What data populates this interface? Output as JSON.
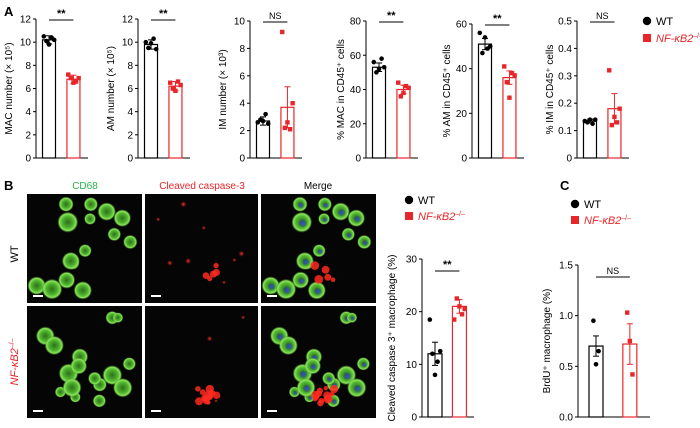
{
  "panel_labels": {
    "a": "A",
    "b": "B",
    "c": "C"
  },
  "colors": {
    "wt": "#000000",
    "ko": "#e8262a",
    "green_label": "#27b34a",
    "red_label": "#e8262a"
  },
  "legend_a": {
    "wt": "WT",
    "ko": "NF-κB2",
    "ko_sup": "–/–"
  },
  "legend_b": {
    "wt": "WT",
    "ko": "NF-κB2",
    "ko_sup": "–/–"
  },
  "legend_c": {
    "wt": "WT",
    "ko": "NF-κB2",
    "ko_sup": "–/–"
  },
  "micro": {
    "col_headers": [
      "CD68",
      "Cleaved caspase-3",
      "Merge"
    ],
    "row_labels": {
      "wt": "WT",
      "ko": "NF-κB2",
      "ko_sup": "–/–"
    }
  },
  "chart_data": [
    {
      "id": "a1",
      "type": "bar",
      "categories": [
        "WT",
        "NF-κB2-/-"
      ],
      "values": [
        10.2,
        6.8
      ],
      "errors": [
        0.35,
        0.35
      ],
      "points": [
        [
          10.5,
          10.1,
          9.8,
          10.4,
          10.2
        ],
        [
          7.2,
          6.9,
          6.5,
          6.6,
          6.9
        ]
      ],
      "ylabel": "MAC number (× 10⁵)",
      "ylim": [
        0,
        12
      ],
      "yticks": [
        0,
        2,
        4,
        6,
        8,
        10,
        12
      ],
      "significance": "**"
    },
    {
      "id": "a2",
      "type": "bar",
      "categories": [
        "WT",
        "NF-κB2-/-"
      ],
      "values": [
        9.8,
        6.2
      ],
      "errors": [
        0.4,
        0.4
      ],
      "points": [
        [
          10.0,
          9.5,
          9.9,
          10.3,
          9.4
        ],
        [
          6.5,
          6.0,
          5.8,
          6.6,
          6.3
        ]
      ],
      "ylabel": "AM number (× 10⁵)",
      "ylim": [
        0,
        12
      ],
      "yticks": [
        0,
        2,
        4,
        6,
        8,
        10,
        12
      ],
      "significance": "**"
    },
    {
      "id": "a3",
      "type": "bar",
      "categories": [
        "WT",
        "NF-κB2-/-"
      ],
      "values": [
        2.7,
        3.7
      ],
      "errors": [
        0.3,
        1.5
      ],
      "points": [
        [
          2.6,
          2.8,
          2.7,
          3.2,
          2.5
        ],
        [
          9.2,
          2.2,
          2.6,
          2.1,
          4.0
        ]
      ],
      "ylabel": "IM number (× 10³)",
      "ylim": [
        0,
        10
      ],
      "yticks": [
        0,
        2,
        4,
        6,
        8,
        10
      ],
      "significance": "NS"
    },
    {
      "id": "a4",
      "type": "bar",
      "categories": [
        "WT",
        "NF-κB2-/-"
      ],
      "values": [
        53,
        40
      ],
      "errors": [
        2.5,
        2.5
      ],
      "points": [
        [
          56,
          50,
          52,
          58,
          53
        ],
        [
          44,
          36,
          38,
          42,
          41
        ]
      ],
      "ylabel": "% MAC in CD45⁺ cells",
      "ylim": [
        0,
        80
      ],
      "yticks": [
        0,
        20,
        40,
        60,
        80
      ],
      "significance": "**"
    },
    {
      "id": "a5",
      "type": "bar",
      "categories": [
        "WT",
        "NF-κB2-/-"
      ],
      "values": [
        51,
        36
      ],
      "errors": [
        2.5,
        3
      ],
      "points": [
        [
          56,
          47,
          54,
          49,
          50
        ],
        [
          41,
          34,
          27,
          38,
          37
        ]
      ],
      "ylabel": "% AM in CD45⁺ cells",
      "ylim": [
        0,
        60
      ],
      "yticks": [
        0,
        20,
        40,
        60
      ],
      "significance": "**"
    },
    {
      "id": "a6",
      "type": "bar",
      "categories": [
        "WT",
        "NF-κB2-/-"
      ],
      "values": [
        0.135,
        0.18
      ],
      "errors": [
        0.007,
        0.055
      ],
      "points": [
        [
          0.135,
          0.13,
          0.14,
          0.125,
          0.14
        ],
        [
          0.32,
          0.12,
          0.15,
          0.13,
          0.18
        ]
      ],
      "ylabel": "% IM in CD45⁺ cells",
      "ylim": [
        0,
        0.5
      ],
      "yticks": [
        0,
        0.1,
        0.2,
        0.3,
        0.4,
        0.5
      ],
      "significance": "NS"
    },
    {
      "id": "b",
      "type": "bar",
      "categories": [
        "WT",
        "NF-κB2-/-"
      ],
      "values": [
        12,
        21
      ],
      "errors": [
        2.2,
        1.3
      ],
      "points": [
        [
          18.5,
          12,
          8,
          10.5,
          12.5
        ],
        [
          18.5,
          22.5,
          21,
          19.5,
          20.5
        ]
      ],
      "ylabel": "Cleaved caspase 3⁺ macrophage (%)",
      "ylim": [
        0,
        30
      ],
      "yticks": [
        0,
        10,
        20,
        30
      ],
      "significance": "**"
    },
    {
      "id": "c",
      "type": "bar",
      "categories": [
        "WT",
        "NF-κB2-/-"
      ],
      "values": [
        0.7,
        0.72
      ],
      "errors": [
        0.1,
        0.2
      ],
      "points": [
        [
          0.95,
          0.52,
          0.65
        ],
        [
          1.03,
          0.75,
          0.42
        ]
      ],
      "ylabel": "BrdU⁺ macrophage (%)",
      "ylim": [
        0,
        1.5
      ],
      "yticks": [
        0,
        0.5,
        1.0,
        1.5
      ],
      "tick_decimals": 1,
      "significance": "NS"
    }
  ]
}
